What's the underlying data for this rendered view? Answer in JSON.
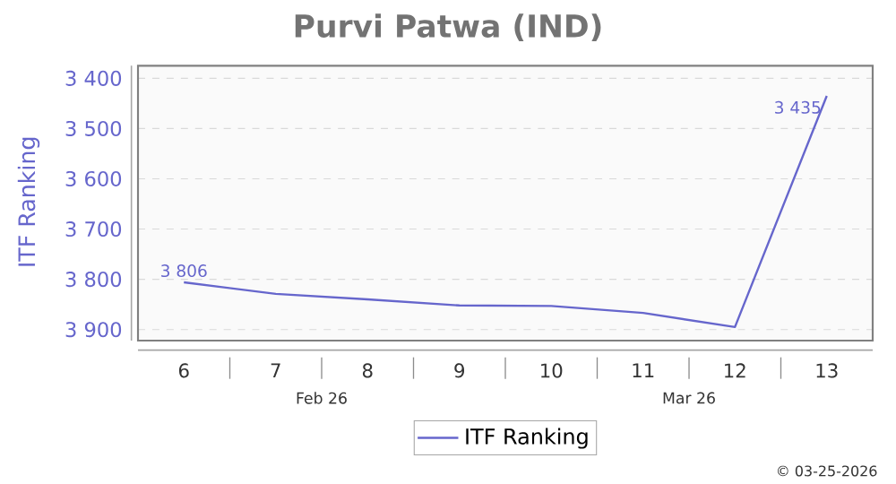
{
  "chart_data": {
    "type": "line",
    "title": "Purvi Patwa (IND)",
    "ylabel": "ITF Ranking",
    "categories": [
      "6",
      "7",
      "8",
      "9",
      "10",
      "11",
      "12",
      "13"
    ],
    "series": [
      {
        "name": "ITF Ranking",
        "color": "#6666cc",
        "values": [
          3806,
          3829,
          3840,
          3852,
          3853,
          3867,
          3895,
          3435
        ],
        "value_labels": [
          "3 806",
          null,
          null,
          null,
          null,
          null,
          null,
          "3 435"
        ]
      }
    ],
    "ylim": [
      3922,
      3375
    ],
    "yticks": [
      {
        "value": 3400,
        "label": "3 400"
      },
      {
        "value": 3500,
        "label": "3 500"
      },
      {
        "value": 3600,
        "label": "3 600"
      },
      {
        "value": 3700,
        "label": "3 700"
      },
      {
        "value": 3800,
        "label": "3 800"
      },
      {
        "value": 3900,
        "label": "3 900"
      }
    ],
    "grid": "y",
    "legend": "bottom",
    "marker": "none",
    "line_style": "solid",
    "annotations": [
      "Feb 26",
      "Mar 26",
      "© 03-25-2026"
    ]
  }
}
